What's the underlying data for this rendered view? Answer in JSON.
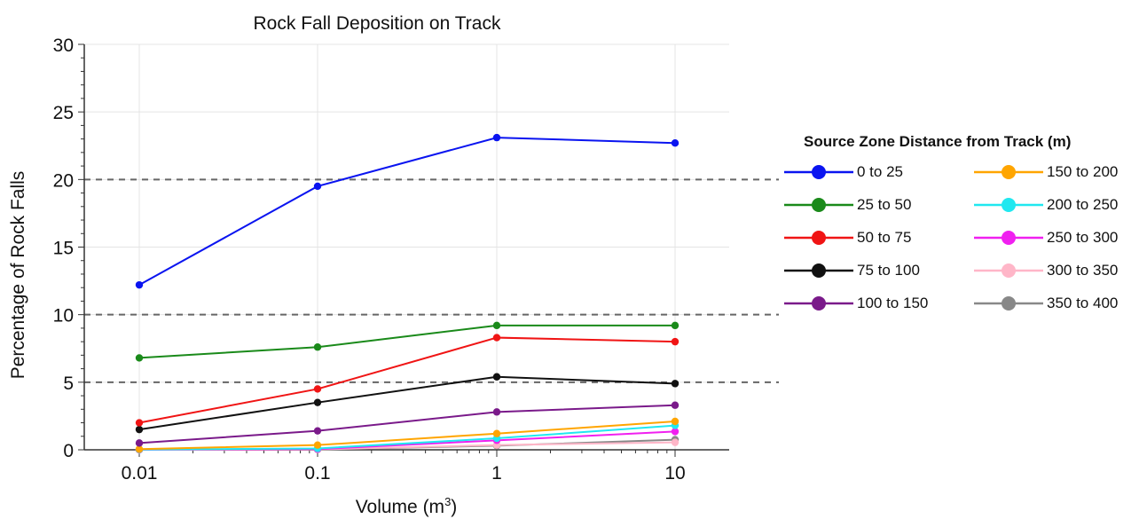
{
  "chart_data": {
    "type": "line",
    "title": "Rock Fall Deposition on Track",
    "xlabel_main": "Volume (m",
    "xlabel_sup": "3",
    "xlabel_end": ")",
    "ylabel": "Percentage of Rock Falls",
    "x_scale": "log",
    "x": [
      0.01,
      0.1,
      1,
      10
    ],
    "x_tick_labels": [
      "0.01",
      "0.1",
      "1",
      "10"
    ],
    "ylim": [
      0,
      30
    ],
    "y_ticks": [
      0,
      5,
      10,
      15,
      20,
      25,
      30
    ],
    "y_tick_labels": [
      "0",
      "5",
      "10",
      "15",
      "20",
      "25",
      "30"
    ],
    "grid": "light vertical and horizontal gridlines",
    "reference_lines_y": [
      5,
      10,
      20
    ],
    "legend_title": "Source Zone Distance from Track (m)",
    "legend_position": "right",
    "series": [
      {
        "name": "0 to 25",
        "color": "#0a14f0",
        "values": [
          12.2,
          19.5,
          23.1,
          22.7
        ]
      },
      {
        "name": "25 to 50",
        "color": "#1a8a1a",
        "values": [
          6.8,
          7.6,
          9.2,
          9.2
        ]
      },
      {
        "name": "50 to 75",
        "color": "#f01414",
        "values": [
          2.0,
          4.5,
          8.3,
          8.0
        ]
      },
      {
        "name": "75 to 100",
        "color": "#111111",
        "values": [
          1.5,
          3.5,
          5.4,
          4.9
        ]
      },
      {
        "name": "100 to 150",
        "color": "#7a1a8a",
        "values": [
          0.5,
          1.4,
          2.8,
          3.3
        ]
      },
      {
        "name": "150 to 200",
        "color": "#ffa500",
        "values": [
          0.05,
          0.35,
          1.2,
          2.1
        ]
      },
      {
        "name": "200 to 250",
        "color": "#20e8f0",
        "values": [
          0.02,
          0.1,
          0.85,
          1.8
        ]
      },
      {
        "name": "250 to 300",
        "color": "#f020f0",
        "values": [
          0.01,
          0.05,
          0.7,
          1.35
        ]
      },
      {
        "name": "300 to 350",
        "color": "#ffb6c8",
        "values": [
          0.0,
          0.03,
          0.35,
          0.55
        ]
      },
      {
        "name": "350 to 400",
        "color": "#888888",
        "values": [
          0.0,
          0.02,
          0.3,
          0.75
        ]
      }
    ]
  }
}
